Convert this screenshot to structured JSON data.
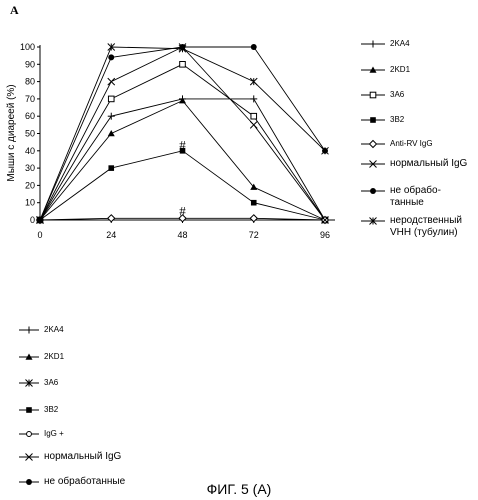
{
  "panel_letter": "A",
  "caption": "ФИГ. 5 (A)",
  "chart_data": {
    "type": "line",
    "ylabel": "Мыши с диареей (%)",
    "xlabel": "",
    "x": [
      0,
      24,
      48,
      72,
      96
    ],
    "ylim": [
      0,
      100
    ],
    "yticks": [
      0,
      10,
      20,
      30,
      40,
      50,
      60,
      70,
      80,
      90,
      100
    ],
    "grid": false,
    "legend_position": "right",
    "series": [
      {
        "name": "2KA4",
        "marker": "plus",
        "values": [
          0,
          60,
          70,
          70,
          0
        ]
      },
      {
        "name": "2KD1",
        "marker": "triangle",
        "values": [
          0,
          50,
          69,
          19,
          0
        ]
      },
      {
        "name": "3A6",
        "marker": "open-square",
        "values": [
          0,
          70,
          90,
          60,
          0
        ]
      },
      {
        "name": "3B2",
        "marker": "filled-square",
        "values": [
          0,
          30,
          40,
          10,
          0
        ]
      },
      {
        "name": "Anti-RV IgG",
        "marker": "open-diamond",
        "values": [
          0,
          1,
          1,
          1,
          0
        ]
      },
      {
        "name": "нормальный IgG",
        "marker": "x",
        "values": [
          0,
          80,
          100,
          55,
          0
        ]
      },
      {
        "name": "не обрабо-\nтанные",
        "marker": "filled-circle",
        "values": [
          0,
          94,
          100,
          100,
          40
        ]
      },
      {
        "name": "неродственный\nVHH (тубулин)",
        "marker": "star",
        "values": [
          0,
          100,
          99,
          80,
          40
        ]
      }
    ],
    "annotations": [
      {
        "text": "#",
        "x": 48,
        "y": 43
      },
      {
        "text": "#",
        "x": 48,
        "y": 5
      }
    ]
  },
  "legend_lower": [
    {
      "name": "2KA4",
      "marker": "plus",
      "size": "small"
    },
    {
      "name": "2KD1",
      "marker": "triangle",
      "size": "small"
    },
    {
      "name": "3A6",
      "marker": "star",
      "size": "small"
    },
    {
      "name": "3B2",
      "marker": "filled-square",
      "size": "small"
    },
    {
      "name": "IgG +",
      "marker": "open-circle",
      "size": "small"
    },
    {
      "name": "нормальный IgG",
      "marker": "x",
      "size": "big"
    },
    {
      "name": "не обработанные",
      "marker": "filled-circle",
      "size": "big"
    }
  ]
}
